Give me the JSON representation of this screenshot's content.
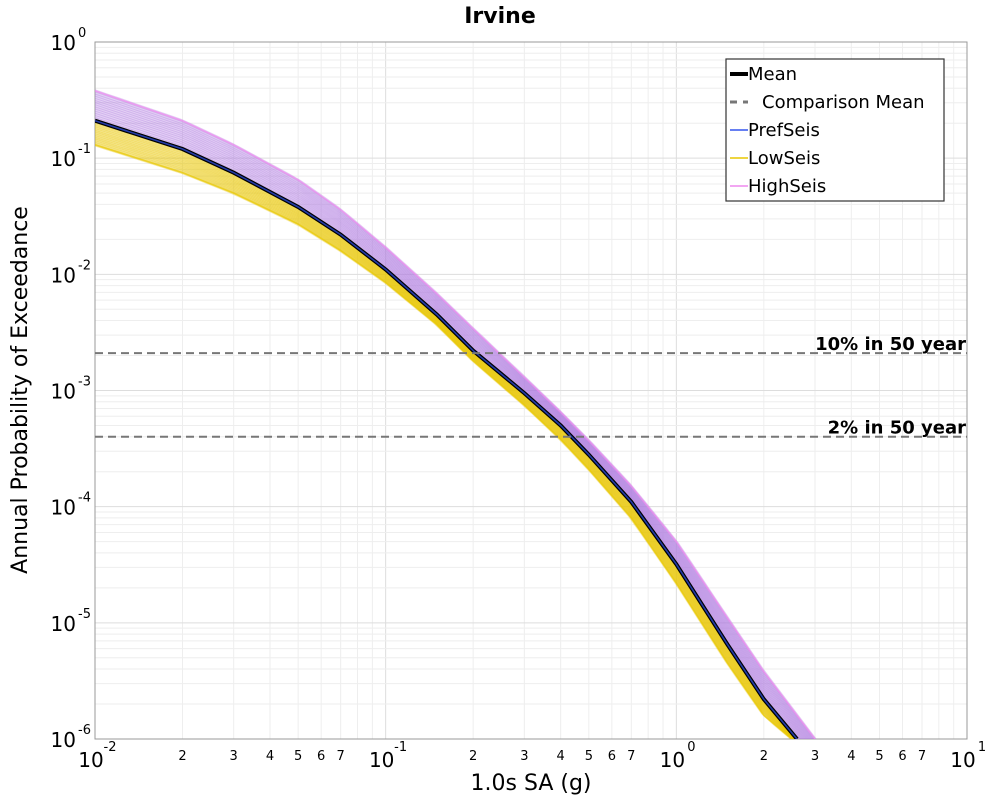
{
  "chart_data": {
    "type": "line",
    "title": "Irvine",
    "xlabel": "1.0s SA (g)",
    "ylabel": "Annual Probability of Exceedance",
    "x_scale": "log",
    "y_scale": "log",
    "xlim": [
      0.01,
      10
    ],
    "ylim": [
      1e-06,
      1
    ],
    "grid": true,
    "legend_position": "top-right",
    "x_ticks": [
      {
        "base": "10",
        "exp": "-2"
      },
      {
        "base": "10",
        "exp": "-1"
      },
      {
        "base": "10",
        "exp": "0"
      },
      {
        "base": "10",
        "exp": "1"
      }
    ],
    "y_ticks": [
      {
        "base": "10",
        "exp": "0"
      },
      {
        "base": "10",
        "exp": "-1"
      },
      {
        "base": "10",
        "exp": "-2"
      },
      {
        "base": "10",
        "exp": "-3"
      },
      {
        "base": "10",
        "exp": "-4"
      },
      {
        "base": "10",
        "exp": "-5"
      },
      {
        "base": "10",
        "exp": "-6"
      }
    ],
    "x_minor_labels": [
      "2",
      "3",
      "4",
      "5",
      "6",
      "7"
    ],
    "series": [
      {
        "name": "Mean",
        "color": "#000000",
        "style": "solid",
        "x": [
          0.01,
          0.02,
          0.03,
          0.05,
          0.07,
          0.1,
          0.15,
          0.2,
          0.3,
          0.4,
          0.5,
          0.7,
          1.0,
          1.5,
          2.0,
          2.6
        ],
        "y": [
          0.21,
          0.12,
          0.075,
          0.038,
          0.022,
          0.011,
          0.0045,
          0.0022,
          0.00095,
          0.0005,
          0.00028,
          0.00011,
          3.2e-05,
          6.5e-06,
          2.2e-06,
          1e-06
        ]
      },
      {
        "name": "Comparison Mean",
        "color": "#777777",
        "style": "dashed",
        "x": [],
        "y": []
      },
      {
        "name": "PrefSeis",
        "color": "#3355ee",
        "style": "solid",
        "x": [
          0.01,
          0.02,
          0.03,
          0.05,
          0.07,
          0.1,
          0.15,
          0.2,
          0.3,
          0.4,
          0.5,
          0.7,
          1.0,
          1.5,
          2.0,
          2.6
        ],
        "y": [
          0.21,
          0.12,
          0.075,
          0.038,
          0.022,
          0.011,
          0.0045,
          0.0022,
          0.00095,
          0.0005,
          0.00028,
          0.00011,
          3.2e-05,
          6.5e-06,
          2.2e-06,
          1e-06
        ]
      },
      {
        "name": "LowSeis",
        "color": "#e8c700",
        "style": "solid",
        "x": [
          0.01,
          0.02,
          0.03,
          0.05,
          0.07,
          0.1,
          0.15,
          0.2,
          0.3,
          0.4,
          0.5,
          0.7,
          1.0,
          1.5,
          2.0,
          2.5
        ],
        "y": [
          0.13,
          0.075,
          0.05,
          0.027,
          0.016,
          0.0085,
          0.0037,
          0.0018,
          0.00075,
          0.00038,
          0.00021,
          8e-05,
          2.2e-05,
          4.5e-06,
          1.6e-06,
          1e-06
        ]
      },
      {
        "name": "HighSeis",
        "color": "#ee88ee",
        "style": "solid",
        "x": [
          0.01,
          0.02,
          0.03,
          0.05,
          0.07,
          0.1,
          0.15,
          0.2,
          0.3,
          0.4,
          0.5,
          0.7,
          1.0,
          1.5,
          2.0,
          3.0
        ],
        "y": [
          0.38,
          0.21,
          0.13,
          0.065,
          0.036,
          0.017,
          0.0068,
          0.0034,
          0.0013,
          0.00065,
          0.00037,
          0.00015,
          5e-05,
          1.1e-05,
          3.8e-06,
          1e-06
        ]
      }
    ],
    "reference_lines": [
      {
        "label": "10% in 50 year",
        "y": 0.0021
      },
      {
        "label": "2% in 50 year",
        "y": 0.0004
      }
    ]
  }
}
